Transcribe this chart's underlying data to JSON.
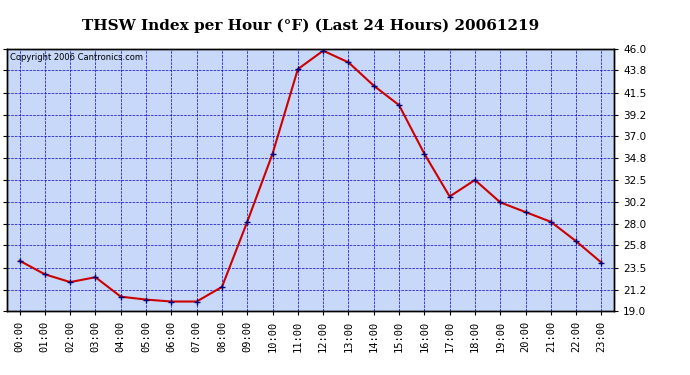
{
  "title": "THSW Index per Hour (°F) (Last 24 Hours) 20061219",
  "copyright": "Copyright 2006 Cantronics.com",
  "hours": [
    "00:00",
    "01:00",
    "02:00",
    "03:00",
    "04:00",
    "05:00",
    "06:00",
    "07:00",
    "08:00",
    "09:00",
    "10:00",
    "11:00",
    "12:00",
    "13:00",
    "14:00",
    "15:00",
    "16:00",
    "17:00",
    "18:00",
    "19:00",
    "20:00",
    "21:00",
    "22:00",
    "23:00"
  ],
  "values": [
    24.2,
    22.8,
    22.0,
    22.5,
    20.5,
    20.2,
    20.0,
    20.0,
    21.5,
    28.2,
    35.2,
    43.9,
    45.8,
    44.6,
    42.2,
    40.2,
    35.2,
    30.8,
    32.5,
    30.2,
    29.2,
    28.2,
    26.2,
    24.0
  ],
  "x_values": [
    0,
    1,
    2,
    3,
    4,
    5,
    6,
    7,
    8,
    9,
    10,
    11,
    12,
    13,
    14,
    15,
    16,
    17,
    18,
    19,
    20,
    21,
    22,
    23
  ],
  "ylim": [
    19.0,
    46.0
  ],
  "yticks": [
    19.0,
    21.2,
    23.5,
    25.8,
    28.0,
    30.2,
    32.5,
    34.8,
    37.0,
    39.2,
    41.5,
    43.8,
    46.0
  ],
  "bg_color": "#c8d8f8",
  "fig_bg_color": "#ffffff",
  "line_color": "#cc0000",
  "marker_color": "#000080",
  "grid_color": "#0000cc",
  "title_fontsize": 11,
  "axis_label_fontsize": 7.5
}
